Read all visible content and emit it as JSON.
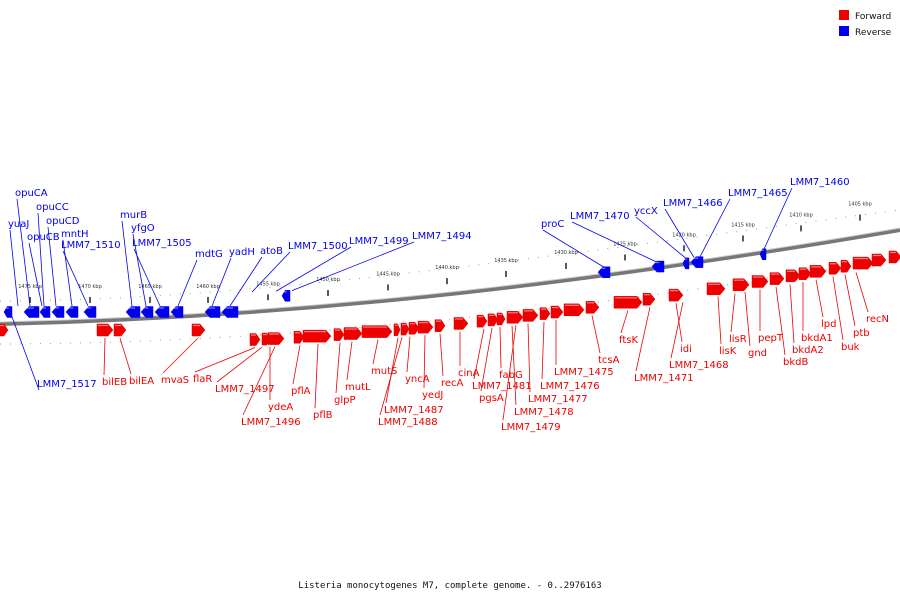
{
  "caption": "Listeria monocytogenes M7, complete genome. - 0..2976163",
  "colors": {
    "forward": "#ee0000",
    "reverse": "#0000ee",
    "backbone": "#888888"
  },
  "legend": [
    {
      "label": "Forward",
      "color": "#ee0000"
    },
    {
      "label": "Reverse",
      "color": "#0000ee"
    }
  ],
  "scale": {
    "unit": "kbp",
    "labels": [
      "1475 kbp",
      "1470 kbp",
      "1465 kbp",
      "1460 kbp",
      "1455 kbp",
      "1450 kbp",
      "1445 kbp",
      "1440 kbp",
      "1435 kbp",
      "1430 kbp",
      "1425 kbp",
      "1420 kbp",
      "1415 kbp",
      "1410 kbp",
      "1405 kbp"
    ]
  },
  "genes": {
    "reverse": [
      "yuaJ",
      "opuCA",
      "opuCC",
      "opuCB",
      "opuCD",
      "mntH",
      "LMM7_1510",
      "murB",
      "yfgO",
      "LMM7_1505",
      "mdtG",
      "yadH",
      "atoB",
      "LMM7_1500",
      "LMM7_1499",
      "LMM7_1494",
      "proC",
      "LMM7_1470",
      "yccX",
      "LMM7_1466",
      "LMM7_1465",
      "LMM7_1460",
      "LMM7_1517"
    ],
    "forward": [
      "bilEB",
      "bilEA",
      "mvaS",
      "flaR",
      "LMM7_1497",
      "ydeA",
      "LMM7_1496",
      "pflA",
      "pflB",
      "glpP",
      "mutL",
      "mutS",
      "LMM7_1487",
      "LMM7_1488",
      "yncA",
      "yedJ",
      "recA",
      "cinA",
      "LMM7_1481",
      "pgsA",
      "fabG",
      "LMM7_1478",
      "LMM7_1479",
      "LMM7_1477",
      "LMM7_1476",
      "LMM7_1475",
      "tcsA",
      "ftsK",
      "LMM7_1471",
      "idi",
      "LMM7_1468",
      "lisK",
      "lisR",
      "gnd",
      "pepT",
      "bkdB",
      "bkdA2",
      "bkdA1",
      "lpd",
      "buk",
      "ptb",
      "recN"
    ]
  }
}
